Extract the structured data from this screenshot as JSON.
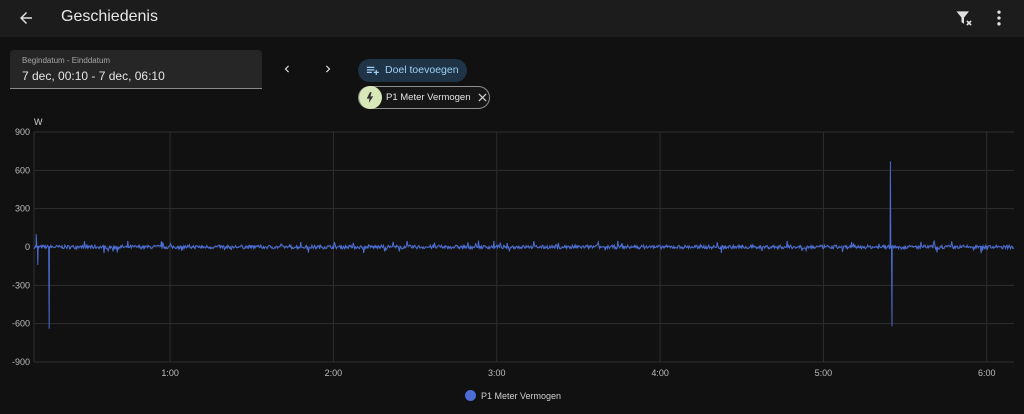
{
  "header": {
    "title": "Geschiedenis"
  },
  "date_picker": {
    "label": "Begindatum - Einddatum",
    "value": "7 dec, 00:10 - 7 dec, 06:10"
  },
  "actions": {
    "add_target_label": "Doel toevoegen"
  },
  "targets": [
    {
      "label": "P1 Meter Vermogen",
      "icon": "lightning-icon"
    }
  ],
  "colors": {
    "series": "#4c6ed4",
    "chip_icon_bg": "#d8e8b9",
    "accent": "#9fd0f4"
  },
  "chart_data": {
    "type": "line",
    "ylabel": "W",
    "yticks": [
      900,
      600,
      300,
      0,
      -300,
      -600,
      -900
    ],
    "ylim": [
      -900,
      900
    ],
    "xticks": [
      "1:00",
      "2:00",
      "3:00",
      "4:00",
      "5:00",
      "6:00"
    ],
    "x_range_hours": [
      0.1667,
      6.1667
    ],
    "grid": true,
    "legend_position": "bottom-center",
    "series": [
      {
        "name": "P1 Meter Vermogen",
        "x": [
          0.1667,
          0.18,
          0.19,
          0.25,
          0.26,
          0.27,
          0.5,
          1.0,
          1.5,
          2.0,
          2.5,
          3.0,
          3.5,
          4.0,
          4.5,
          5.0,
          5.4,
          5.41,
          5.42,
          5.43,
          5.8,
          6.1667
        ],
        "values": [
          0,
          100,
          -140,
          0,
          -640,
          0,
          0,
          0,
          0,
          0,
          0,
          0,
          0,
          0,
          0,
          0,
          0,
          670,
          -620,
          0,
          0,
          0
        ],
        "noise_amplitude": 50
      }
    ]
  }
}
